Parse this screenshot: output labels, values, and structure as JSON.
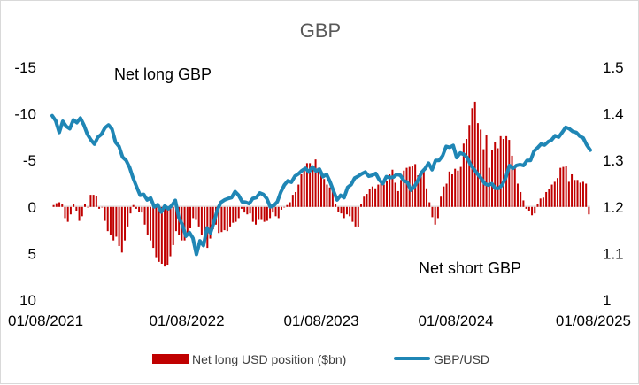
{
  "chart_data": {
    "type": "bar+line",
    "title": "GBP",
    "colors": {
      "bars": "#c00000",
      "line": "#1f86b5",
      "title": "#595959",
      "border": "#d9d9d9"
    },
    "x_tick_labels": [
      "01/08/2021",
      "01/08/2022",
      "01/08/2023",
      "01/08/2024",
      "01/08/2025"
    ],
    "left_axis": {
      "ticks": [
        "-15",
        "-10",
        "-5",
        "0",
        "5",
        "10"
      ],
      "range": [
        10,
        -15
      ],
      "inverted": true
    },
    "right_axis": {
      "ticks": [
        "1.5",
        "1.4",
        "1.3",
        "1.2",
        "1.1",
        "1"
      ],
      "range": [
        1.0,
        1.5
      ]
    },
    "annotations": {
      "top": "Net long GBP",
      "bottom": "Net short GBP"
    },
    "legend": {
      "position": "bottom",
      "bars_label": "Net long USD position ($bn)",
      "line_label": "GBP/USD"
    },
    "series": [
      {
        "name": "Net long USD position ($bn)",
        "axis": "left",
        "values": [
          -0.2,
          -0.4,
          -0.5,
          -0.3,
          1.2,
          1.6,
          0.8,
          -0.3,
          0.4,
          1.5,
          1.0,
          -0.3,
          0.0,
          -1.3,
          -1.3,
          -1.2,
          0.2,
          0.0,
          1.5,
          2.6,
          3.0,
          3.6,
          3.2,
          4.2,
          4.9,
          3.6,
          2.1,
          0.7,
          -0.2,
          0.2,
          0.5,
          0.6,
          1.9,
          3.0,
          3.6,
          4.4,
          5.4,
          5.9,
          6.1,
          6.4,
          6.2,
          5.3,
          4.1,
          2.6,
          3.0,
          3.6,
          3.6,
          3.0,
          2.3,
          1.2,
          1.4,
          2.1,
          3.0,
          4.0,
          4.4,
          3.4,
          2.4,
          1.9,
          2.8,
          2.7,
          2.5,
          2.6,
          2.1,
          1.7,
          1.6,
          1.2,
          0.2,
          0.6,
          0.8,
          0.7,
          1.6,
          1.9,
          1.4,
          1.4,
          1.6,
          1.5,
          1.2,
          0.6,
          1.0,
          1.2,
          0.3,
          0.0,
          -0.2,
          -0.5,
          -1.3,
          -1.6,
          -2.4,
          -3.5,
          -4.1,
          -4.7,
          -4.7,
          -4.1,
          -5.1,
          -4.2,
          -3.6,
          -3.0,
          -2.4,
          -2.1,
          -1.8,
          -0.3,
          0.5,
          0.7,
          1.2,
          0.8,
          1.0,
          1.6,
          2.1,
          2.2,
          -0.3,
          -1.1,
          -1.4,
          -1.9,
          -2.2,
          -2.0,
          -2.4,
          -2.7,
          -2.4,
          -2.8,
          -3.5,
          -4.0,
          -2.6,
          -1.7,
          -2.9,
          -3.9,
          -4.2,
          -4.3,
          -4.4,
          -4.6,
          -3.4,
          -3.8,
          -4.0,
          -2.0,
          -0.5,
          1.1,
          1.9,
          1.2,
          -1.1,
          -2.2,
          -2.5,
          -3.8,
          -3.5,
          -4.1,
          -3.9,
          -4.3,
          -6.8,
          -7.3,
          -8.8,
          -10.6,
          -11.3,
          -9.0,
          -8.3,
          -6.2,
          -7.7,
          -4.2,
          -6.1,
          -7.0,
          -6.3,
          -7.6,
          -7.3,
          -7.6,
          -7.2,
          -5.5,
          -4.3,
          -2.5,
          -1.6,
          -0.7,
          0.2,
          0.4,
          0.9,
          0.7,
          -0.3,
          -0.9,
          -1.0,
          -1.6,
          -1.9,
          -2.4,
          -2.7,
          -3.1,
          -4.2,
          -4.3,
          -4.4,
          -2.7,
          -3.5,
          -2.9,
          -2.9,
          -2.6,
          -2.7,
          -2.5,
          0.8
        ],
        "x_range_indices": [
          0,
          193
        ]
      },
      {
        "name": "GBP/USD",
        "axis": "right",
        "values": [
          1.396,
          1.385,
          1.36,
          1.384,
          1.373,
          1.368,
          1.387,
          1.381,
          1.391,
          1.376,
          1.356,
          1.344,
          1.335,
          1.35,
          1.356,
          1.37,
          1.376,
          1.367,
          1.339,
          1.33,
          1.307,
          1.3,
          1.285,
          1.262,
          1.243,
          1.225,
          1.227,
          1.215,
          1.219,
          1.2,
          1.205,
          1.189,
          1.202,
          1.196,
          1.203,
          1.214,
          1.177,
          1.162,
          1.137,
          1.145,
          1.133,
          1.098,
          1.127,
          1.117,
          1.155,
          1.144,
          1.168,
          1.195,
          1.21,
          1.215,
          1.218,
          1.22,
          1.233,
          1.225,
          1.211,
          1.21,
          1.207,
          1.218,
          1.22,
          1.23,
          1.227,
          1.218,
          1.2,
          1.203,
          1.211,
          1.232,
          1.247,
          1.256,
          1.253,
          1.266,
          1.271,
          1.278,
          1.283,
          1.275,
          1.286,
          1.277,
          1.281,
          1.265,
          1.27,
          1.254,
          1.234,
          1.215,
          1.225,
          1.22,
          1.242,
          1.248,
          1.262,
          1.266,
          1.271,
          1.275,
          1.266,
          1.268,
          1.272,
          1.258,
          1.25,
          1.265,
          1.263,
          1.264,
          1.27,
          1.268,
          1.256,
          1.253,
          1.236,
          1.244,
          1.257,
          1.274,
          1.282,
          1.294,
          1.28,
          1.3,
          1.3,
          1.31,
          1.33,
          1.328,
          1.332,
          1.306,
          1.316,
          1.313,
          1.306,
          1.29,
          1.28,
          1.27,
          1.261,
          1.25,
          1.247,
          1.25,
          1.24,
          1.24,
          1.248,
          1.264,
          1.289,
          1.283,
          1.289,
          1.291,
          1.289,
          1.3,
          1.3,
          1.32,
          1.327,
          1.335,
          1.333,
          1.34,
          1.344,
          1.353,
          1.35,
          1.36,
          1.371,
          1.368,
          1.362,
          1.36,
          1.352,
          1.348,
          1.333,
          1.322
        ],
        "x_range_indices": [
          0,
          193
        ]
      }
    ]
  }
}
